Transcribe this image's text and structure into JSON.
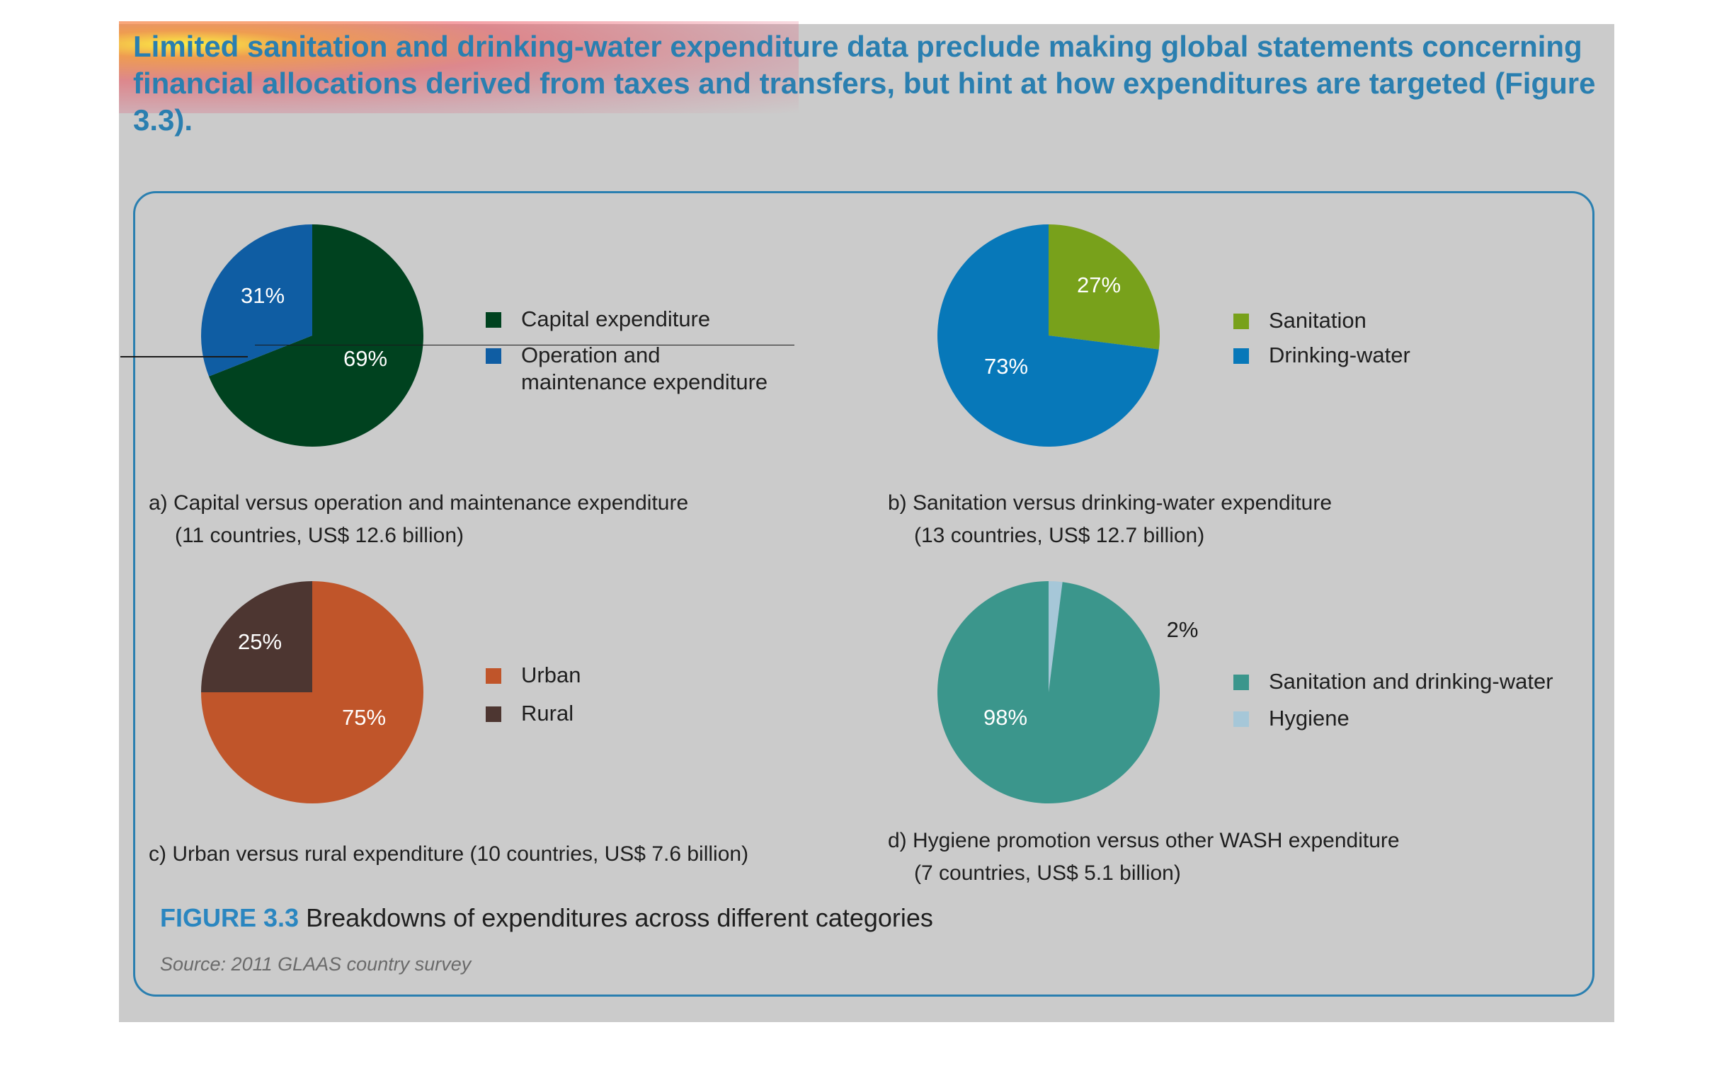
{
  "heading": "Limited sanitation and drinking-water expenditure data preclude making global statements concerning financial allocations derived from taxes and transfers, but hint at how expenditures are targeted (Figure 3.3).",
  "figure": {
    "number": "FIGURE 3.3",
    "title": "Breakdowns of expenditures across different categories",
    "source": "Source: 2011 GLAAS country survey"
  },
  "chart_data": [
    {
      "type": "pie",
      "caption": "a) Capital versus operation and maintenance expenditure",
      "subcaption": "(11 countries, US$ 12.6 billion)",
      "slices": [
        {
          "name": "Capital expenditure",
          "value": 69,
          "label": "69%",
          "color": "#00421f"
        },
        {
          "name": "Operation and maintenance expenditure",
          "value": 31,
          "label": "31%",
          "color": "#0f5da3"
        }
      ],
      "legend": [
        {
          "label": "Capital expenditure",
          "color": "#00421f"
        },
        {
          "label": "Operation and maintenance expenditure",
          "color": "#0f5da3"
        }
      ]
    },
    {
      "type": "pie",
      "caption": "b) Sanitation versus drinking-water expenditure",
      "subcaption": "(13 countries, US$ 12.7 billion)",
      "slices": [
        {
          "name": "Sanitation",
          "value": 27,
          "label": "27%",
          "color": "#78a11b"
        },
        {
          "name": "Drinking-water",
          "value": 73,
          "label": "73%",
          "color": "#0778b9"
        }
      ],
      "legend": [
        {
          "label": "Sanitation",
          "color": "#78a11b"
        },
        {
          "label": "Drinking-water",
          "color": "#0778b9"
        }
      ]
    },
    {
      "type": "pie",
      "caption": "c) Urban versus rural expenditure (10 countries, US$ 7.6 billion)",
      "subcaption": "",
      "slices": [
        {
          "name": "Urban",
          "value": 75,
          "label": "75%",
          "color": "#c0552a"
        },
        {
          "name": "Rural",
          "value": 25,
          "label": "25%",
          "color": "#4d3631"
        }
      ],
      "legend": [
        {
          "label": "Urban",
          "color": "#c0552a"
        },
        {
          "label": "Rural",
          "color": "#4d3631"
        }
      ]
    },
    {
      "type": "pie",
      "caption": "d) Hygiene promotion versus other WASH expenditure",
      "subcaption": "(7 countries, US$ 5.1 billion)",
      "slices": [
        {
          "name": "Hygiene",
          "value": 2,
          "label": "2%",
          "color": "#a6c7d8"
        },
        {
          "name": "Sanitation and drinking-water",
          "value": 98,
          "label": "98%",
          "color": "#3b968c"
        }
      ],
      "legend": [
        {
          "label": "Sanitation and drinking-water",
          "color": "#3b968c"
        },
        {
          "label": "Hygiene",
          "color": "#a6c7d8"
        }
      ]
    }
  ]
}
